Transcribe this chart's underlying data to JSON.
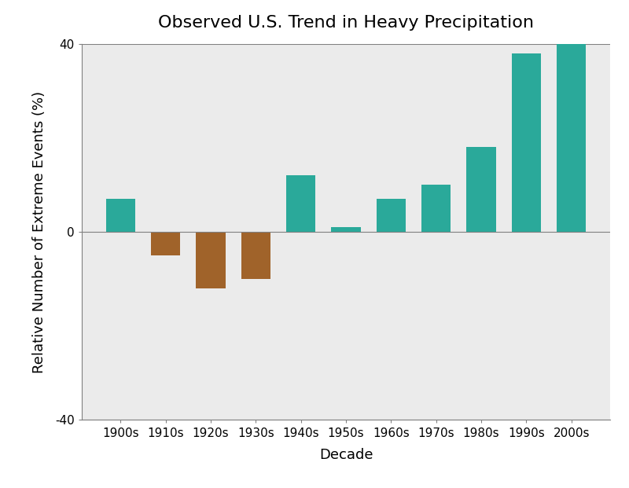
{
  "title": "Observed U.S. Trend in Heavy Precipitation",
  "xlabel": "Decade",
  "ylabel": "Relative Number of Extreme Events (%)",
  "categories": [
    "1900s",
    "1910s",
    "1920s",
    "1930s",
    "1940s",
    "1950s",
    "1960s",
    "1970s",
    "1980s",
    "1990s",
    "2000s"
  ],
  "values": [
    7,
    -5,
    -12,
    -10,
    12,
    1,
    7,
    10,
    18,
    38,
    40
  ],
  "positive_color": "#2aA99A",
  "negative_color": "#A0632A",
  "ylim": [
    -40,
    40
  ],
  "yticks": [
    -40,
    0,
    40
  ],
  "plot_background_color": "#EBEBEB",
  "fig_background_color": "#FFFFFF",
  "title_fontsize": 16,
  "axis_label_fontsize": 13,
  "tick_label_fontsize": 11,
  "bar_width": 0.65
}
